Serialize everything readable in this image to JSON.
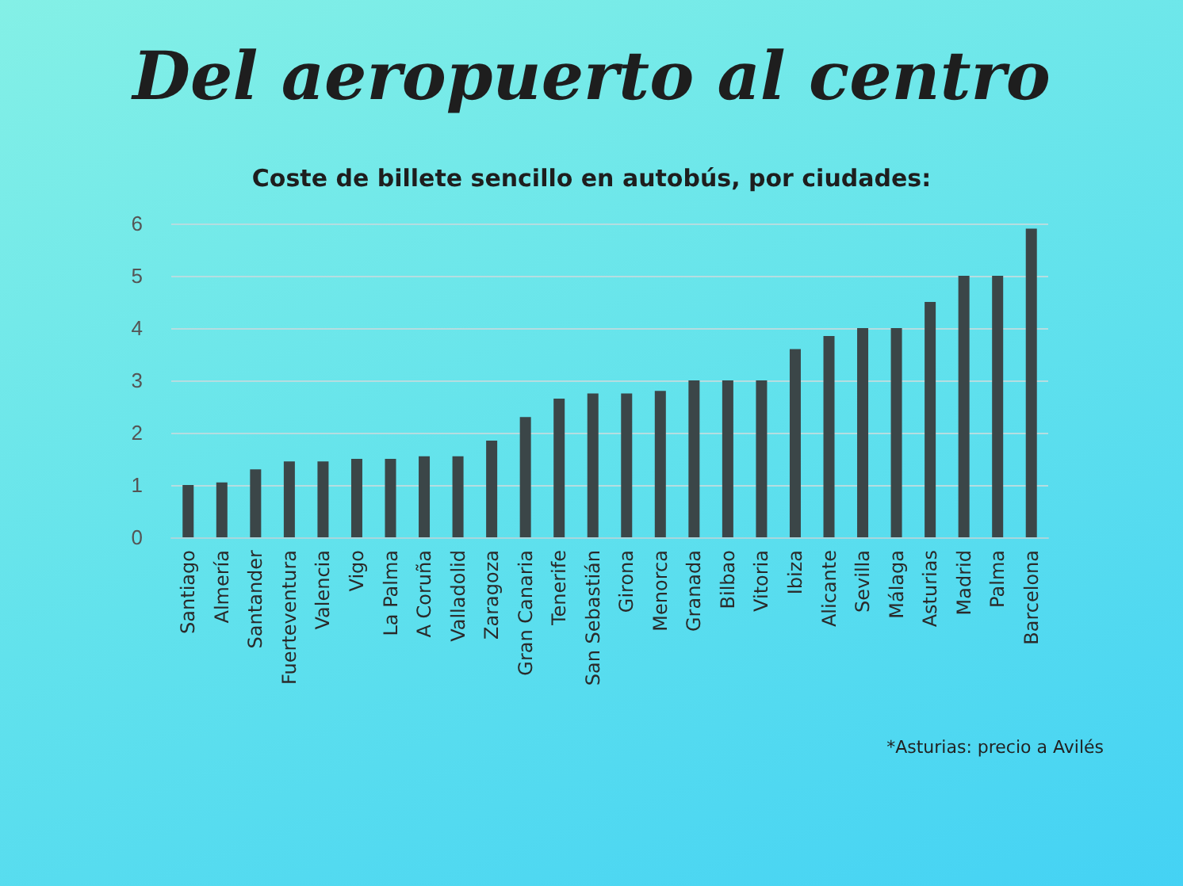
{
  "chart_data": {
    "type": "bar",
    "title": "Del aeropuerto al centro",
    "subtitle": "Coste de billete sencillo en autobús, por ciudades:",
    "categories": [
      "Santiago",
      "Almería",
      "Santander",
      "Fuerteventura",
      "Valencia",
      "Vigo",
      "La Palma",
      "A Coruña",
      "Valladolid",
      "Zaragoza",
      "Gran Canaria",
      "Tenerife",
      "San Sebastián",
      "Girona",
      "Menorca",
      "Granada",
      "Bilbao",
      "Vitoria",
      "Ibiza",
      "Alicante",
      "Sevilla",
      "Málaga",
      "Asturias",
      "Madrid",
      "Palma",
      "Barcelona"
    ],
    "values": [
      1,
      1.05,
      1.3,
      1.45,
      1.45,
      1.5,
      1.5,
      1.55,
      1.55,
      1.85,
      2.3,
      2.65,
      2.75,
      2.75,
      2.8,
      3,
      3,
      3,
      3.6,
      3.85,
      4,
      4,
      4.5,
      5,
      5,
      5.9
    ],
    "color": "#3b4648",
    "ylim": [
      0,
      6
    ],
    "yticks": [
      0,
      1,
      2,
      3,
      4,
      5,
      6
    ],
    "grid": "y",
    "annotations": [
      "*Asturias: precio a Avilés"
    ]
  }
}
